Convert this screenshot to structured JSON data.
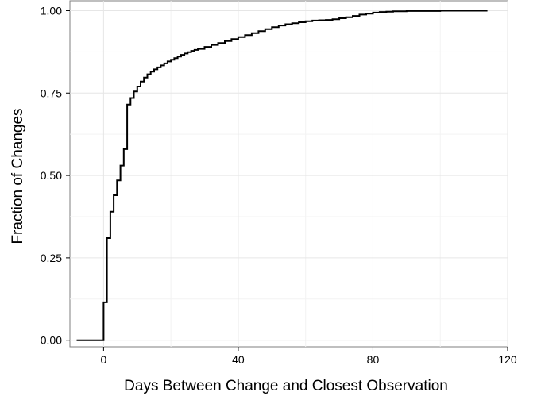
{
  "chart_data": {
    "type": "line",
    "title": "",
    "xlabel": "Days Between Change and Closest Observation",
    "ylabel": "Fraction of Changes",
    "xlim": [
      -10,
      120
    ],
    "ylim": [
      -0.02,
      1.03
    ],
    "grid": true,
    "x_ticks": [
      0,
      40,
      80,
      120
    ],
    "x_tick_labels": [
      "0",
      "40",
      "80",
      "120"
    ],
    "y_ticks": [
      0,
      0.25,
      0.5,
      0.75,
      1.0
    ],
    "y_tick_labels": [
      "0.00",
      "0.25",
      "0.50",
      "0.75",
      "1.00"
    ],
    "series": [
      {
        "x": [
          -8,
          0,
          1,
          2,
          3,
          4,
          5,
          6,
          7,
          8,
          9,
          10,
          11,
          12,
          13,
          14,
          15,
          16,
          17,
          18,
          19,
          20,
          21,
          22,
          23,
          24,
          25,
          26,
          27,
          28,
          30,
          32,
          34,
          36,
          38,
          40,
          42,
          44,
          46,
          48,
          50,
          52,
          54,
          56,
          58,
          60,
          62,
          64,
          66,
          68,
          70,
          72,
          74,
          76,
          78,
          80,
          82,
          84,
          86,
          88,
          90,
          95,
          100,
          105,
          110,
          114
        ],
        "y": [
          0.0,
          0.115,
          0.31,
          0.39,
          0.44,
          0.485,
          0.53,
          0.58,
          0.715,
          0.735,
          0.755,
          0.77,
          0.785,
          0.797,
          0.807,
          0.815,
          0.822,
          0.828,
          0.834,
          0.84,
          0.846,
          0.851,
          0.856,
          0.861,
          0.866,
          0.87,
          0.874,
          0.878,
          0.881,
          0.884,
          0.89,
          0.896,
          0.902,
          0.908,
          0.914,
          0.92,
          0.926,
          0.932,
          0.938,
          0.944,
          0.95,
          0.955,
          0.959,
          0.962,
          0.965,
          0.968,
          0.97,
          0.971,
          0.972,
          0.974,
          0.977,
          0.98,
          0.984,
          0.988,
          0.991,
          0.994,
          0.996,
          0.997,
          0.998,
          0.998,
          0.999,
          0.999,
          1.0,
          1.0,
          1.0,
          1.0
        ]
      }
    ]
  }
}
